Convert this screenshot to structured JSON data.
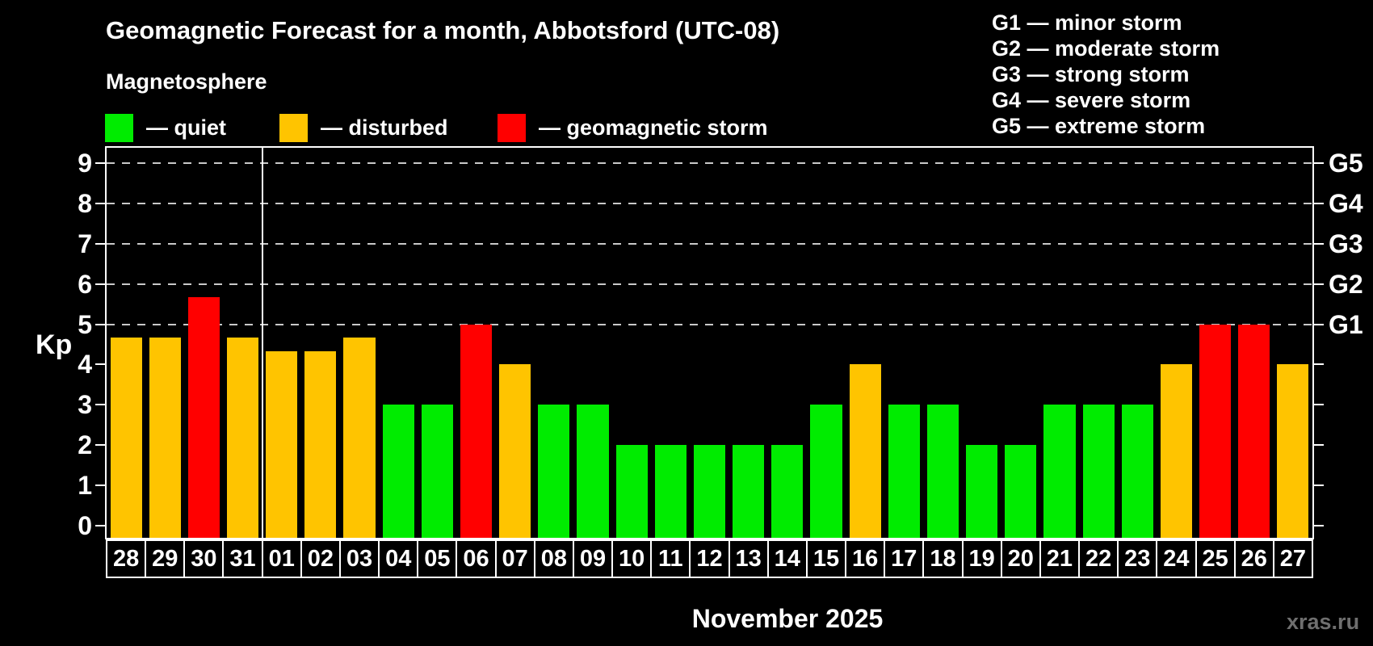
{
  "header": {
    "title": "Geomagnetic Forecast for a month, Abbotsford (UTC-08)",
    "subtitle": "Magnetosphere",
    "legend": [
      {
        "status": "quiet",
        "label": "— quiet",
        "color": "#00ec00"
      },
      {
        "status": "disturbed",
        "label": "— disturbed",
        "color": "#ffc400"
      },
      {
        "status": "storm",
        "label": "— geomagnetic storm",
        "color": "#ff0000"
      }
    ],
    "g_scale_legend": [
      "G1 — minor storm",
      "G2 — moderate storm",
      "G3 — strong storm",
      "G4 — severe storm",
      "G5 — extreme storm"
    ]
  },
  "chart_data": {
    "type": "bar",
    "title": "Geomagnetic Forecast for a month, Abbotsford (UTC-08)",
    "ylabel": "Kp",
    "xlabel": "November 2025",
    "ylim": [
      0,
      9.4
    ],
    "yticks": [
      "0",
      "1",
      "2",
      "3",
      "4",
      "5",
      "6",
      "7",
      "8",
      "9"
    ],
    "gridlines_at": [
      5,
      6,
      7,
      8,
      9
    ],
    "grid": "dashed, only at Kp 5-9",
    "right_axis_labels": [
      {
        "value": 5,
        "label": "G1"
      },
      {
        "value": 6,
        "label": "G2"
      },
      {
        "value": 7,
        "label": "G3"
      },
      {
        "value": 8,
        "label": "G4"
      },
      {
        "value": 9,
        "label": "G5"
      }
    ],
    "month_separator_after_index": 3,
    "colors": {
      "quiet": "#00ec00",
      "disturbed": "#ffc400",
      "storm": "#ff0000"
    },
    "bars": [
      {
        "date": "28",
        "value": 4.67,
        "status": "disturbed"
      },
      {
        "date": "29",
        "value": 4.67,
        "status": "disturbed"
      },
      {
        "date": "30",
        "value": 5.67,
        "status": "storm"
      },
      {
        "date": "31",
        "value": 4.67,
        "status": "disturbed"
      },
      {
        "date": "01",
        "value": 4.33,
        "status": "disturbed"
      },
      {
        "date": "02",
        "value": 4.33,
        "status": "disturbed"
      },
      {
        "date": "03",
        "value": 4.67,
        "status": "disturbed"
      },
      {
        "date": "04",
        "value": 3,
        "status": "quiet"
      },
      {
        "date": "05",
        "value": 3,
        "status": "quiet"
      },
      {
        "date": "06",
        "value": 5,
        "status": "storm"
      },
      {
        "date": "07",
        "value": 4,
        "status": "disturbed"
      },
      {
        "date": "08",
        "value": 3,
        "status": "quiet"
      },
      {
        "date": "09",
        "value": 3,
        "status": "quiet"
      },
      {
        "date": "10",
        "value": 2,
        "status": "quiet"
      },
      {
        "date": "11",
        "value": 2,
        "status": "quiet"
      },
      {
        "date": "12",
        "value": 2,
        "status": "quiet"
      },
      {
        "date": "13",
        "value": 2,
        "status": "quiet"
      },
      {
        "date": "14",
        "value": 2,
        "status": "quiet"
      },
      {
        "date": "15",
        "value": 3,
        "status": "quiet"
      },
      {
        "date": "16",
        "value": 4,
        "status": "disturbed"
      },
      {
        "date": "17",
        "value": 3,
        "status": "quiet"
      },
      {
        "date": "18",
        "value": 3,
        "status": "quiet"
      },
      {
        "date": "19",
        "value": 2,
        "status": "quiet"
      },
      {
        "date": "20",
        "value": 2,
        "status": "quiet"
      },
      {
        "date": "21",
        "value": 3,
        "status": "quiet"
      },
      {
        "date": "22",
        "value": 3,
        "status": "quiet"
      },
      {
        "date": "23",
        "value": 3,
        "status": "quiet"
      },
      {
        "date": "24",
        "value": 4,
        "status": "disturbed"
      },
      {
        "date": "25",
        "value": 5,
        "status": "storm"
      },
      {
        "date": "26",
        "value": 5,
        "status": "storm"
      },
      {
        "date": "27",
        "value": 4,
        "status": "disturbed"
      }
    ]
  },
  "footer": {
    "month_label": "November 2025",
    "watermark": "xras.ru"
  }
}
